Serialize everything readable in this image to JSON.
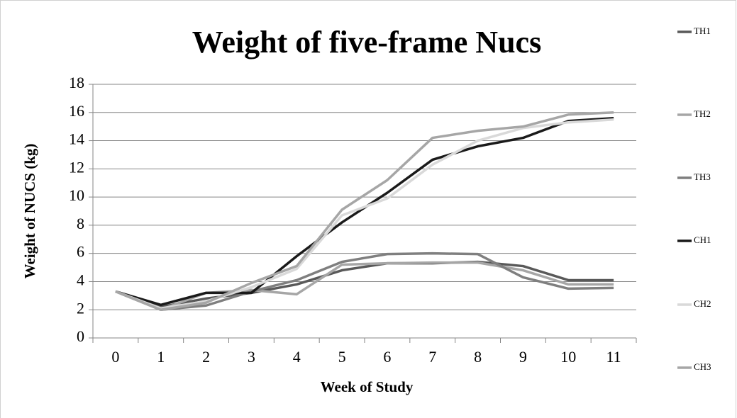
{
  "chart_data": {
    "type": "line",
    "title": "Weight of five-frame Nucs",
    "x_label": "Week of Study",
    "y_label": "Weight of NUCS (kg)",
    "categories": [
      "0",
      "1",
      "2",
      "3",
      "4",
      "5",
      "6",
      "7",
      "8",
      "9",
      "10",
      "11"
    ],
    "series": [
      {
        "name": "TH1",
        "color": "#595959",
        "values": [
          3.3,
          2.2,
          2.8,
          3.2,
          3.8,
          4.8,
          5.3,
          5.3,
          5.4,
          5.1,
          4.1,
          4.1
        ]
      },
      {
        "name": "TH2",
        "color": "#a6a6a6",
        "values": [
          3.3,
          2.0,
          3.2,
          3.4,
          3.1,
          5.2,
          5.3,
          5.35,
          5.35,
          4.8,
          3.8,
          3.8
        ]
      },
      {
        "name": "TH3",
        "color": "#7f7f7f",
        "values": [
          3.3,
          2.0,
          2.3,
          3.3,
          4.1,
          5.4,
          5.95,
          6.0,
          5.95,
          4.3,
          3.5,
          3.55
        ]
      },
      {
        "name": "CH1",
        "color": "#1a1a1a",
        "values": [
          3.3,
          2.35,
          3.2,
          3.2,
          5.8,
          8.2,
          10.3,
          12.65,
          13.6,
          14.2,
          15.4,
          15.6
        ]
      },
      {
        "name": "CH2",
        "color": "#d9d9d9",
        "values": [
          3.3,
          2.1,
          2.6,
          3.6,
          4.9,
          8.7,
          9.9,
          12.3,
          14.0,
          14.9,
          15.3,
          15.5
        ]
      },
      {
        "name": "CH3",
        "color": "#a6a6a6",
        "values": [
          3.3,
          2.0,
          2.5,
          3.9,
          5.1,
          9.1,
          11.2,
          14.2,
          14.7,
          15.0,
          15.85,
          16.0
        ]
      }
    ],
    "ylim": [
      0,
      18
    ],
    "yticks": [
      0,
      2,
      4,
      6,
      8,
      10,
      12,
      14,
      16,
      18
    ],
    "grid": true,
    "legend": "right"
  }
}
